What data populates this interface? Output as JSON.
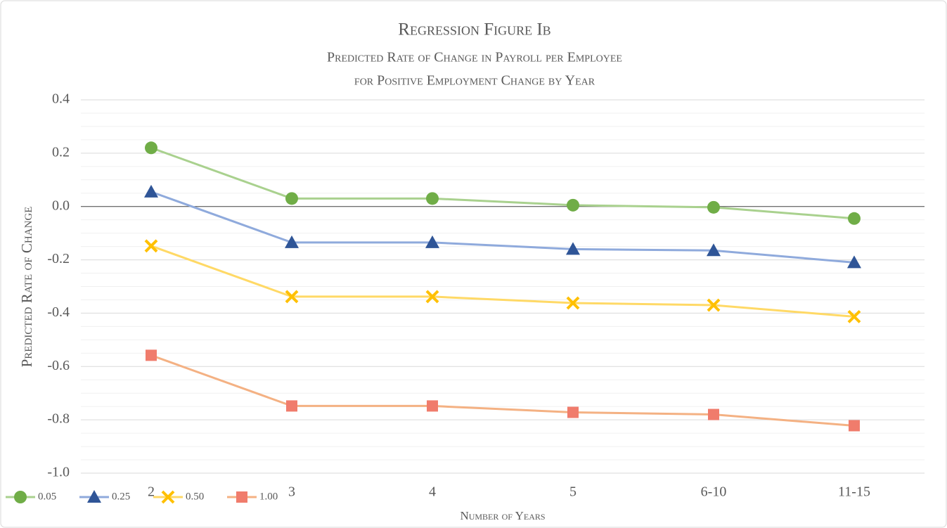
{
  "chart_data": {
    "type": "line",
    "title": "Regression Figure Ib",
    "subtitle": [
      "Predicted Rate of Change in Payroll per Employee",
      "for Positive Employment Change by Year"
    ],
    "x_label": "Number of Years",
    "y_label": "Predicted Rate of Change",
    "categories": [
      "2",
      "3",
      "4",
      "5",
      "6-10",
      "11-15"
    ],
    "series": [
      {
        "name": "0.05",
        "color": "#a9d18e",
        "marker_color": "#70ad47",
        "marker": "circle",
        "values": [
          0.22,
          0.03,
          0.03,
          0.005,
          -0.003,
          -0.045
        ]
      },
      {
        "name": "0.25",
        "color": "#8faadc",
        "marker_color": "#2f5597",
        "marker": "triangle",
        "values": [
          0.055,
          -0.135,
          -0.135,
          -0.16,
          -0.165,
          -0.21
        ]
      },
      {
        "name": "0.50",
        "color": "#ffd966",
        "marker_color": "#ffc000",
        "marker": "x",
        "values": [
          -0.148,
          -0.338,
          -0.338,
          -0.362,
          -0.37,
          -0.413
        ]
      },
      {
        "name": "1.00",
        "color": "#f4b183",
        "marker_color": "#f07c6c",
        "marker": "square",
        "values": [
          -0.558,
          -0.748,
          -0.748,
          -0.772,
          -0.78,
          -0.822
        ]
      }
    ],
    "ylim": [
      -1.0,
      0.4
    ],
    "yticks": [
      0.4,
      0.2,
      {
        "value": 0,
        "label": "0.0"
      },
      -0.2,
      -0.4,
      -0.6,
      -0.8,
      {
        "value": -1.0,
        "label": "-1.0"
      }
    ],
    "grid": true,
    "minor_grid": true,
    "legend": "bottom-left"
  }
}
